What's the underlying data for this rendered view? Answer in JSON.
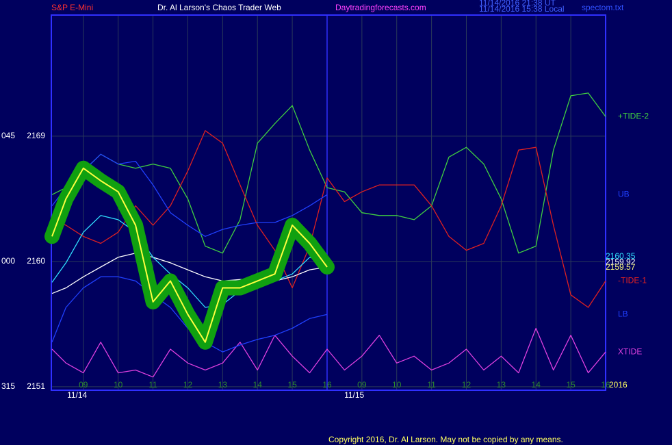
{
  "chart_data": {
    "type": "line",
    "header": [
      "S&P E-Mini",
      "Dr. Al Larson's Chaos Trader Web",
      "Daytradingforecasts.com"
    ],
    "header_colors": [
      "#ff3030",
      "#ffffff",
      "#ff40ff"
    ],
    "timestamps": [
      "11/14/2016 21:38 UT",
      "11/14/2016 15:38 Local"
    ],
    "file_label": "spectom.txt",
    "copyright": "Copyright 2016, Dr. Al Larson. May not be copied by any means.",
    "year_label": "2016",
    "angle_labels": [
      "045",
      "000",
      "315"
    ],
    "ylim": [
      2150.75,
      2177.7
    ],
    "yticks": [
      2169,
      2160,
      2151
    ],
    "xlim": [
      -0.92,
      15
    ],
    "xticks": [
      {
        "value": 0,
        "label": "09"
      },
      {
        "value": 1,
        "label": "10"
      },
      {
        "value": 2,
        "label": "11"
      },
      {
        "value": 3,
        "label": "12"
      },
      {
        "value": 4,
        "label": "13"
      },
      {
        "value": 5,
        "label": "14"
      },
      {
        "value": 6,
        "label": "15"
      },
      {
        "value": 7,
        "label": "16"
      },
      {
        "value": 8,
        "label": "09"
      },
      {
        "value": 9,
        "label": "10"
      },
      {
        "value": 10,
        "label": "11"
      },
      {
        "value": 11,
        "label": "12"
      },
      {
        "value": 12,
        "label": "13"
      },
      {
        "value": 13,
        "label": "14"
      },
      {
        "value": 14,
        "label": "15"
      },
      {
        "value": 15,
        "label": "16"
      }
    ],
    "date_ticks": [
      {
        "value": -0.18,
        "label": "11/14"
      },
      {
        "value": 7.78,
        "label": "11/15"
      }
    ],
    "session_break": 7,
    "grid": true,
    "x": [
      -0.9,
      -0.5,
      0,
      0.5,
      1,
      1.5,
      2,
      2.5,
      3,
      3.5,
      4,
      4.5,
      5,
      5.5,
      6,
      6.5,
      7,
      7.5,
      8,
      8.5,
      9,
      9.5,
      10,
      10.5,
      11,
      11.5,
      12,
      12.5,
      13,
      13.5,
      14,
      14.5,
      15
    ],
    "series": [
      {
        "name": "+TIDE-2",
        "color": "#40d040",
        "values": [
          2164.8,
          2165.3,
          2166.5,
          2167.7,
          2167.0,
          2166.7,
          2167.0,
          2166.7,
          2164.5,
          2161.1,
          2160.6,
          2163.0,
          2168.5,
          2169.9,
          2171.2,
          2168.0,
          2165.3,
          2165.0,
          2163.5,
          2163.3,
          2163.3,
          2163.0,
          2164.0,
          2167.5,
          2168.2,
          2167.0,
          2164.5,
          2160.6,
          2161.1,
          2168.0,
          2171.9,
          2172.1,
          2170.4
        ]
      },
      {
        "name": "-TIDE-1",
        "color": "#e02020",
        "values": [
          2163.0,
          2162.6,
          2161.8,
          2161.3,
          2162.1,
          2164.0,
          2162.6,
          2164.0,
          2166.5,
          2169.4,
          2168.5,
          2165.5,
          2162.6,
          2160.8,
          2158.1,
          2161.1,
          2166.0,
          2164.3,
          2165.0,
          2165.5,
          2165.5,
          2165.5,
          2164.0,
          2161.8,
          2160.8,
          2161.3,
          2164.0,
          2168.0,
          2168.2,
          2162.6,
          2157.6,
          2156.7,
          2158.6
        ]
      },
      {
        "name": "XTIDE",
        "color": "#e040e0",
        "values": [
          2153.7,
          2152.7,
          2152.0,
          2154.2,
          2152.0,
          2152.2,
          2151.7,
          2153.7,
          2152.7,
          2152.2,
          2152.7,
          2154.2,
          2152.2,
          2154.7,
          2153.2,
          2152.0,
          2153.7,
          2152.2,
          2153.2,
          2154.7,
          2152.7,
          2153.2,
          2152.2,
          2152.7,
          2153.7,
          2152.2,
          2153.2,
          2152.0,
          2155.2,
          2152.2,
          2154.7,
          2152.0,
          2153.5
        ]
      },
      {
        "name": "UB",
        "color": "#2040ff",
        "values": [
          2164.0,
          2165.3,
          2166.5,
          2167.7,
          2167.0,
          2167.2,
          2165.5,
          2163.5,
          2162.6,
          2161.8,
          2162.3,
          2162.6,
          2162.8,
          2162.8,
          2163.3,
          2164.0,
          2164.8,
          null,
          null,
          null,
          null,
          null,
          null,
          null,
          null,
          null,
          null,
          null,
          null,
          null,
          null,
          null,
          null
        ]
      },
      {
        "name": "LB",
        "color": "#2040ff",
        "values": [
          2154.2,
          2156.7,
          2158.1,
          2158.9,
          2158.9,
          2158.6,
          2157.6,
          2156.7,
          2155.2,
          2154.2,
          2153.5,
          2154.0,
          2154.4,
          2154.7,
          2155.2,
          2155.9,
          2156.2,
          null,
          null,
          null,
          null,
          null,
          null,
          null,
          null,
          null,
          null,
          null,
          null,
          null,
          null,
          null,
          null
        ]
      },
      {
        "color": "#ffffff",
        "values": [
          2157.7,
          2158.1,
          2158.9,
          2159.6,
          2160.3,
          2160.6,
          2160.3,
          2159.9,
          2159.4,
          2158.9,
          2158.6,
          2158.7,
          2158.7,
          2158.6,
          2158.9,
          2159.4,
          2159.6,
          null,
          null,
          null,
          null,
          null,
          null,
          null,
          null,
          null,
          null,
          null,
          null,
          null,
          null,
          null,
          null
        ]
      },
      {
        "color": "#30e0ff",
        "values": [
          2158.5,
          2159.9,
          2162.1,
          2163.3,
          2163.0,
          2162.1,
          2160.3,
          2159.1,
          2158.1,
          2156.7,
          2156.9,
          2157.9,
          2158.4,
          2158.6,
          2159.1,
          2160.3,
          2159.9,
          null,
          null,
          null,
          null,
          null,
          null,
          null,
          null,
          null,
          null,
          null,
          null,
          null,
          null,
          null,
          null
        ]
      },
      {
        "color": "#ffff40",
        "halo": "#10a010",
        "values": [
          2161.8,
          2164.5,
          2166.7,
          2165.8,
          2165.0,
          2162.6,
          2157.1,
          2158.6,
          2156.2,
          2154.2,
          2158.1,
          2158.1,
          2158.6,
          2159.1,
          2162.6,
          2161.3,
          2159.6,
          null,
          null,
          null,
          null,
          null,
          null,
          null,
          null,
          null,
          null,
          null,
          null,
          null,
          null,
          null,
          null
        ]
      }
    ],
    "price_labels": [
      {
        "value": 2160.35,
        "color": "#30e0ff"
      },
      {
        "value": 2159.92,
        "color": "#ffffff"
      },
      {
        "value": 2159.57,
        "color": "#ffff80"
      }
    ]
  }
}
